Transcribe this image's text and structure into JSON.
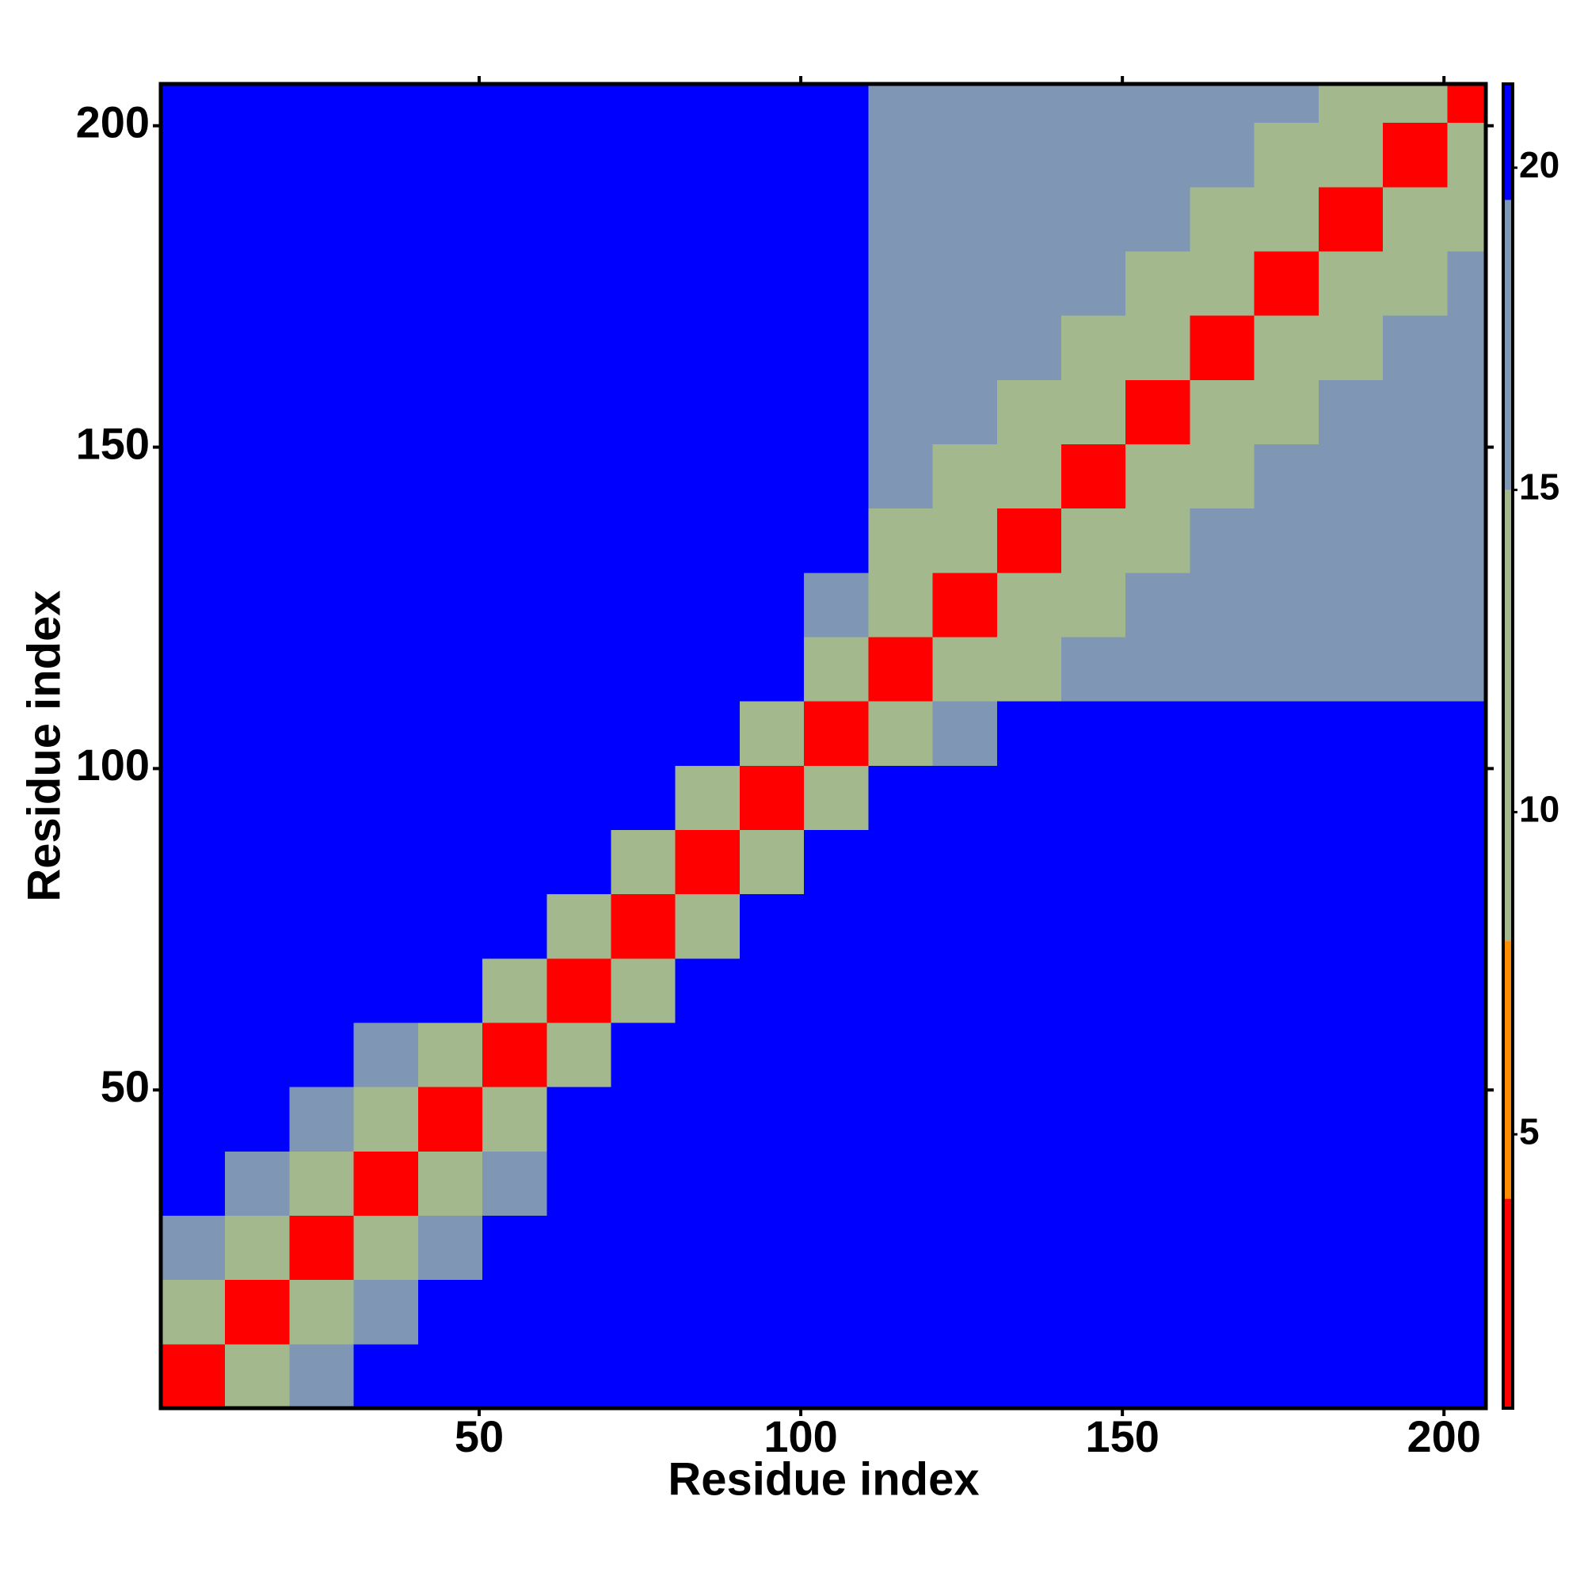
{
  "chart_data": {
    "type": "heatmap",
    "x_label": "Residue index",
    "y_label": "Residue index",
    "xbins": [
      0.5,
      10.5,
      20.5,
      30.5,
      40.5,
      50.5,
      60.5,
      70.5,
      80.5,
      90.5,
      100.5,
      110.5,
      120.5,
      130.5,
      140.5,
      150.5,
      160.5,
      170.5,
      180.5,
      190.5,
      200.5,
      206.5
    ],
    "ybins": [
      0.5,
      10.5,
      20.5,
      30.5,
      40.5,
      50.5,
      60.5,
      70.5,
      80.5,
      90.5,
      100.5,
      110.5,
      120.5,
      130.5,
      140.5,
      150.5,
      160.5,
      170.5,
      180.5,
      190.5,
      200.5,
      206.5
    ],
    "xlim": [
      0.5,
      206.5
    ],
    "ylim": [
      0.5,
      206.5
    ],
    "xticks": [
      50,
      100,
      150,
      200
    ],
    "yticks": [
      50,
      100,
      150,
      200
    ],
    "z": [
      [
        4,
        14,
        19,
        21,
        21,
        21,
        21,
        21,
        21,
        21,
        21,
        21,
        21,
        21,
        21,
        21,
        21,
        21,
        21,
        21,
        21
      ],
      [
        14,
        4,
        14,
        18,
        21,
        21,
        21,
        21,
        21,
        21,
        21,
        21,
        21,
        21,
        21,
        21,
        21,
        21,
        21,
        21,
        21
      ],
      [
        19,
        14,
        4,
        14,
        17,
        21,
        21,
        21,
        21,
        21,
        21,
        21,
        21,
        21,
        21,
        21,
        21,
        21,
        21,
        21,
        21
      ],
      [
        21,
        18,
        14,
        4,
        14,
        18,
        21,
        21,
        21,
        21,
        21,
        21,
        21,
        21,
        21,
        21,
        21,
        21,
        21,
        21,
        21
      ],
      [
        21,
        21,
        17,
        14,
        4,
        14,
        21,
        21,
        21,
        21,
        21,
        21,
        21,
        21,
        21,
        21,
        21,
        21,
        21,
        21,
        21
      ],
      [
        21,
        21,
        21,
        18,
        14,
        4,
        14,
        21,
        21,
        21,
        21,
        21,
        21,
        21,
        21,
        21,
        21,
        21,
        21,
        21,
        21
      ],
      [
        21,
        21,
        21,
        21,
        21,
        14,
        4,
        14,
        21,
        21,
        21,
        21,
        21,
        21,
        21,
        21,
        21,
        21,
        21,
        21,
        21
      ],
      [
        21,
        21,
        21,
        21,
        21,
        21,
        14,
        4,
        13,
        21,
        21,
        21,
        21,
        21,
        21,
        21,
        21,
        21,
        21,
        21,
        21
      ],
      [
        21,
        21,
        21,
        21,
        21,
        21,
        21,
        13,
        4,
        12,
        21,
        21,
        21,
        21,
        21,
        21,
        21,
        21,
        21,
        21,
        21
      ],
      [
        21,
        21,
        21,
        21,
        21,
        21,
        21,
        21,
        12,
        4,
        14,
        21,
        21,
        21,
        21,
        21,
        21,
        21,
        21,
        21,
        21
      ],
      [
        21,
        21,
        21,
        21,
        21,
        21,
        21,
        21,
        21,
        14,
        4,
        14,
        19,
        21,
        21,
        21,
        21,
        21,
        21,
        21,
        21
      ],
      [
        21,
        21,
        21,
        21,
        21,
        21,
        21,
        21,
        21,
        21,
        14,
        4,
        11,
        15,
        17,
        17,
        18,
        18,
        18,
        18,
        18
      ],
      [
        21,
        21,
        21,
        21,
        21,
        21,
        21,
        21,
        21,
        21,
        19,
        11,
        4,
        11,
        15,
        17,
        17,
        17,
        18,
        18,
        18
      ],
      [
        21,
        21,
        21,
        21,
        21,
        21,
        21,
        21,
        21,
        21,
        21,
        15,
        11,
        4,
        11,
        15,
        17,
        17,
        17,
        18,
        18
      ],
      [
        21,
        21,
        21,
        21,
        21,
        21,
        21,
        21,
        21,
        21,
        21,
        17,
        15,
        11,
        4,
        11,
        15,
        17,
        17,
        17,
        18
      ],
      [
        21,
        21,
        21,
        21,
        21,
        21,
        21,
        21,
        21,
        21,
        21,
        17,
        17,
        15,
        11,
        4,
        11,
        15,
        17,
        17,
        17
      ],
      [
        21,
        21,
        21,
        21,
        21,
        21,
        21,
        21,
        21,
        21,
        21,
        18,
        17,
        17,
        15,
        11,
        4,
        11,
        15,
        17,
        17
      ],
      [
        21,
        21,
        21,
        21,
        21,
        21,
        21,
        21,
        21,
        21,
        21,
        18,
        18,
        17,
        17,
        15,
        11,
        4,
        11,
        15,
        17
      ],
      [
        21,
        21,
        21,
        21,
        21,
        21,
        21,
        21,
        21,
        21,
        21,
        18,
        18,
        18,
        17,
        17,
        15,
        11,
        4,
        11,
        15
      ],
      [
        21,
        21,
        21,
        21,
        21,
        21,
        21,
        21,
        21,
        21,
        21,
        18,
        18,
        18,
        18,
        17,
        17,
        15,
        11,
        4,
        11
      ],
      [
        21,
        21,
        21,
        21,
        21,
        21,
        21,
        21,
        21,
        21,
        21,
        18,
        18,
        18,
        18,
        18,
        17,
        17,
        15,
        11,
        4
      ]
    ],
    "zlim": [
      0.75,
      21.3
    ],
    "zticks": [
      5,
      10,
      15,
      20
    ],
    "colorscale": [
      {
        "to": 4,
        "color": "#ff0000"
      },
      {
        "to": 8,
        "color": "#ff8c00"
      },
      {
        "to": 15,
        "color": "#a3b88d"
      },
      {
        "to": 19.5,
        "color": "#7f97b4"
      },
      {
        "to": 21.3,
        "color": "#0000ff"
      }
    ]
  }
}
